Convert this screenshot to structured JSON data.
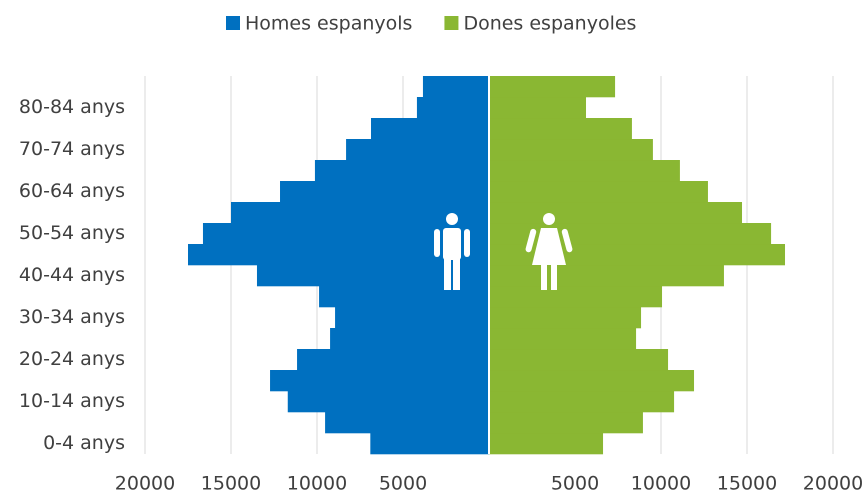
{
  "chart_data": {
    "type": "pyramid",
    "categories": [
      "0-4 anys",
      null,
      "10-14 anys",
      null,
      "20-24 anys",
      null,
      "30-34 anys",
      null,
      "40-44 anys",
      null,
      "50-54 anys",
      null,
      "60-64 anys",
      null,
      "70-74 anys",
      null,
      "80-84 anys",
      null
    ],
    "series": [
      {
        "name": "Homes espanyols",
        "color": "#0070c0",
        "side": "left",
        "values": [
          6900,
          9530,
          11700,
          12730,
          11160,
          9240,
          8950,
          9880,
          13490,
          17500,
          16630,
          15000,
          12150,
          10120,
          8310,
          6860,
          4190,
          3840
        ]
      },
      {
        "name": "Dones espanyoles",
        "color": "#8ab733",
        "side": "right",
        "values": [
          6630,
          8950,
          10760,
          11920,
          10410,
          8550,
          8840,
          10060,
          13660,
          17210,
          16400,
          14710,
          12730,
          11100,
          9530,
          8310,
          5640,
          7330
        ]
      }
    ],
    "xlim": [
      -20000,
      20000
    ],
    "xticks": [
      {
        "value": -20000,
        "label": "20000"
      },
      {
        "value": -15000,
        "label": "15000"
      },
      {
        "value": -10000,
        "label": "10000"
      },
      {
        "value": -5000,
        "label": "5000"
      },
      5000,
      10000,
      15000,
      20000
    ],
    "grid": true,
    "legend": "top"
  }
}
